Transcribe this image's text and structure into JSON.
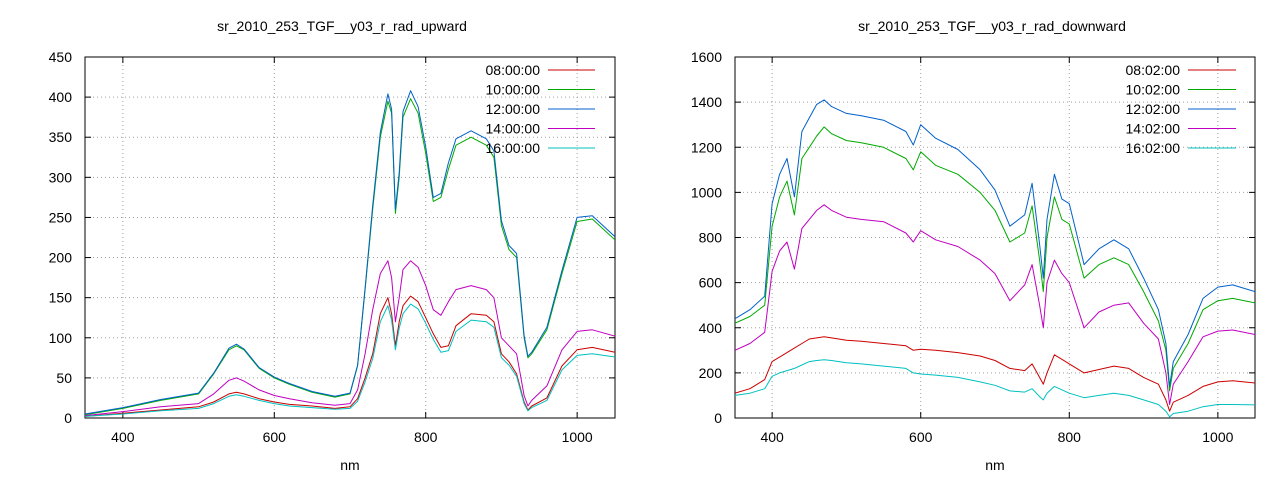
{
  "chart_data": [
    {
      "type": "line",
      "title": "sr_2010_253_TGF__y03_r_rad_upward",
      "xlabel": "nm",
      "ylabel": "",
      "xlim": [
        350,
        1050
      ],
      "ylim": [
        0,
        450
      ],
      "xticks": [
        400,
        600,
        800,
        1000
      ],
      "yticks": [
        0,
        50,
        100,
        150,
        200,
        250,
        300,
        350,
        400,
        450
      ],
      "grid": true,
      "legend_position": "top-right",
      "series": [
        {
          "name": "08:00:00",
          "color": "#cc0000",
          "x": [
            350,
            400,
            450,
            500,
            520,
            540,
            550,
            560,
            580,
            600,
            620,
            650,
            680,
            700,
            710,
            720,
            730,
            740,
            750,
            755,
            760,
            765,
            770,
            780,
            790,
            800,
            810,
            820,
            830,
            840,
            860,
            880,
            890,
            900,
            910,
            920,
            930,
            935,
            940,
            960,
            980,
            1000,
            1020,
            1050
          ],
          "y": [
            2,
            6,
            10,
            14,
            20,
            30,
            32,
            30,
            24,
            20,
            17,
            15,
            12,
            14,
            24,
            50,
            80,
            130,
            150,
            130,
            90,
            120,
            140,
            152,
            145,
            125,
            105,
            88,
            90,
            115,
            130,
            128,
            120,
            80,
            70,
            55,
            20,
            10,
            15,
            25,
            65,
            85,
            88,
            82
          ]
        },
        {
          "name": "10:00:00",
          "color": "#00aa00",
          "x": [
            350,
            400,
            450,
            500,
            520,
            540,
            550,
            560,
            580,
            600,
            620,
            650,
            680,
            700,
            710,
            720,
            730,
            740,
            750,
            755,
            760,
            765,
            770,
            780,
            790,
            800,
            810,
            820,
            830,
            840,
            860,
            880,
            890,
            900,
            910,
            920,
            930,
            935,
            940,
            960,
            980,
            1000,
            1020,
            1050
          ],
          "y": [
            4,
            12,
            22,
            30,
            55,
            85,
            90,
            85,
            62,
            50,
            42,
            32,
            26,
            30,
            65,
            160,
            260,
            350,
            395,
            380,
            255,
            300,
            375,
            398,
            380,
            330,
            270,
            275,
            310,
            340,
            350,
            340,
            325,
            240,
            210,
            200,
            100,
            75,
            80,
            110,
            180,
            245,
            248,
            222
          ]
        },
        {
          "name": "12:00:00",
          "color": "#0060cc",
          "x": [
            350,
            400,
            450,
            500,
            520,
            540,
            550,
            560,
            580,
            600,
            620,
            650,
            680,
            700,
            710,
            720,
            730,
            740,
            750,
            755,
            760,
            765,
            770,
            780,
            790,
            800,
            810,
            820,
            830,
            840,
            860,
            880,
            890,
            900,
            910,
            920,
            930,
            935,
            940,
            960,
            980,
            1000,
            1020,
            1050
          ],
          "y": [
            5,
            13,
            23,
            31,
            56,
            87,
            92,
            86,
            63,
            51,
            43,
            33,
            27,
            31,
            66,
            162,
            265,
            356,
            404,
            385,
            260,
            306,
            382,
            408,
            388,
            338,
            275,
            280,
            318,
            348,
            358,
            348,
            333,
            246,
            215,
            205,
            103,
            77,
            82,
            113,
            184,
            250,
            252,
            226
          ]
        },
        {
          "name": "14:00:00",
          "color": "#c000c0",
          "x": [
            350,
            400,
            450,
            500,
            520,
            540,
            550,
            560,
            580,
            600,
            620,
            650,
            680,
            700,
            710,
            720,
            730,
            740,
            750,
            755,
            760,
            765,
            770,
            780,
            790,
            800,
            810,
            820,
            830,
            840,
            860,
            880,
            890,
            900,
            910,
            920,
            930,
            935,
            940,
            960,
            980,
            1000,
            1020,
            1050
          ],
          "y": [
            3,
            8,
            14,
            18,
            30,
            47,
            50,
            46,
            35,
            28,
            24,
            19,
            16,
            18,
            35,
            80,
            135,
            180,
            196,
            175,
            120,
            150,
            185,
            196,
            188,
            165,
            135,
            128,
            145,
            160,
            165,
            160,
            150,
            100,
            90,
            80,
            28,
            15,
            22,
            40,
            85,
            108,
            110,
            102
          ]
        },
        {
          "name": "16:00:00",
          "color": "#00c0c0",
          "x": [
            350,
            400,
            450,
            500,
            520,
            540,
            550,
            560,
            580,
            600,
            620,
            650,
            680,
            700,
            710,
            720,
            730,
            740,
            750,
            755,
            760,
            765,
            770,
            780,
            790,
            800,
            810,
            820,
            830,
            840,
            860,
            880,
            890,
            900,
            910,
            920,
            930,
            935,
            940,
            960,
            980,
            1000,
            1020,
            1050
          ],
          "y": [
            2,
            5,
            9,
            12,
            18,
            27,
            29,
            27,
            22,
            18,
            15,
            13,
            11,
            12,
            21,
            45,
            74,
            120,
            140,
            122,
            85,
            112,
            130,
            142,
            136,
            118,
            98,
            82,
            84,
            108,
            122,
            120,
            113,
            75,
            66,
            52,
            18,
            9,
            13,
            22,
            60,
            78,
            80,
            76
          ]
        }
      ]
    },
    {
      "type": "line",
      "title": "sr_2010_253_TGF__y03_r_rad_downward",
      "xlabel": "nm",
      "ylabel": "",
      "xlim": [
        350,
        1050
      ],
      "ylim": [
        0,
        1600
      ],
      "xticks": [
        400,
        600,
        800,
        1000
      ],
      "yticks": [
        0,
        200,
        400,
        600,
        800,
        1000,
        1200,
        1400,
        1600
      ],
      "grid": true,
      "legend_position": "top-right",
      "series": [
        {
          "name": "08:02:00",
          "color": "#cc0000",
          "x": [
            350,
            370,
            390,
            400,
            410,
            420,
            430,
            440,
            450,
            460,
            470,
            480,
            500,
            520,
            550,
            580,
            590,
            600,
            620,
            650,
            680,
            700,
            720,
            740,
            750,
            760,
            765,
            770,
            780,
            790,
            800,
            820,
            840,
            860,
            880,
            900,
            920,
            930,
            935,
            940,
            960,
            980,
            1000,
            1020,
            1050
          ],
          "y": [
            110,
            130,
            170,
            250,
            270,
            290,
            310,
            330,
            350,
            355,
            360,
            355,
            345,
            340,
            330,
            320,
            300,
            305,
            300,
            290,
            275,
            255,
            220,
            210,
            240,
            180,
            150,
            200,
            280,
            260,
            240,
            200,
            215,
            230,
            220,
            180,
            150,
            80,
            30,
            70,
            100,
            140,
            160,
            165,
            155
          ]
        },
        {
          "name": "10:02:00",
          "color": "#00aa00",
          "x": [
            350,
            370,
            390,
            400,
            410,
            420,
            430,
            440,
            450,
            460,
            470,
            480,
            500,
            520,
            550,
            580,
            590,
            600,
            620,
            650,
            680,
            700,
            720,
            740,
            750,
            760,
            765,
            770,
            780,
            790,
            800,
            820,
            840,
            860,
            880,
            900,
            920,
            930,
            935,
            940,
            960,
            980,
            1000,
            1020,
            1050
          ],
          "y": [
            420,
            450,
            500,
            850,
            980,
            1050,
            900,
            1150,
            1200,
            1250,
            1290,
            1260,
            1230,
            1220,
            1200,
            1150,
            1100,
            1180,
            1120,
            1080,
            1000,
            920,
            780,
            820,
            940,
            700,
            560,
            800,
            980,
            880,
            860,
            620,
            680,
            710,
            680,
            560,
            430,
            300,
            120,
            220,
            330,
            480,
            520,
            530,
            510
          ]
        },
        {
          "name": "12:02:00",
          "color": "#0060cc",
          "x": [
            350,
            370,
            390,
            400,
            410,
            420,
            430,
            440,
            450,
            460,
            470,
            480,
            500,
            520,
            550,
            580,
            590,
            600,
            620,
            650,
            680,
            700,
            720,
            740,
            750,
            760,
            765,
            770,
            780,
            790,
            800,
            820,
            840,
            860,
            880,
            900,
            920,
            930,
            935,
            940,
            960,
            980,
            1000,
            1020,
            1050
          ],
          "y": [
            440,
            480,
            540,
            950,
            1080,
            1150,
            980,
            1270,
            1330,
            1390,
            1410,
            1380,
            1350,
            1340,
            1320,
            1270,
            1210,
            1300,
            1240,
            1190,
            1100,
            1010,
            850,
            900,
            1040,
            770,
            620,
            880,
            1080,
            970,
            950,
            680,
            750,
            790,
            750,
            620,
            480,
            330,
            140,
            250,
            370,
            530,
            580,
            590,
            560
          ]
        },
        {
          "name": "14:02:00",
          "color": "#c000c0",
          "x": [
            350,
            370,
            390,
            400,
            410,
            420,
            430,
            440,
            450,
            460,
            470,
            480,
            500,
            520,
            550,
            580,
            590,
            600,
            620,
            650,
            680,
            700,
            720,
            740,
            750,
            760,
            765,
            770,
            780,
            790,
            800,
            820,
            840,
            860,
            880,
            900,
            920,
            930,
            935,
            940,
            960,
            980,
            1000,
            1020,
            1050
          ],
          "y": [
            300,
            330,
            380,
            650,
            740,
            780,
            660,
            840,
            880,
            920,
            945,
            920,
            890,
            880,
            870,
            820,
            780,
            830,
            790,
            760,
            700,
            640,
            520,
            590,
            680,
            500,
            400,
            600,
            700,
            640,
            600,
            400,
            470,
            500,
            510,
            420,
            350,
            200,
            60,
            150,
            250,
            360,
            385,
            390,
            370
          ]
        },
        {
          "name": "16:02:00",
          "color": "#00c0c0",
          "x": [
            350,
            370,
            390,
            400,
            410,
            420,
            430,
            440,
            450,
            460,
            470,
            480,
            500,
            520,
            550,
            580,
            590,
            600,
            620,
            650,
            680,
            700,
            720,
            740,
            750,
            760,
            765,
            770,
            780,
            790,
            800,
            820,
            840,
            860,
            880,
            900,
            920,
            930,
            935,
            940,
            960,
            980,
            1000,
            1020,
            1050
          ],
          "y": [
            100,
            110,
            130,
            185,
            200,
            210,
            220,
            235,
            250,
            255,
            258,
            255,
            245,
            240,
            230,
            220,
            200,
            195,
            190,
            180,
            160,
            145,
            120,
            115,
            130,
            95,
            80,
            110,
            140,
            125,
            110,
            90,
            100,
            110,
            100,
            80,
            60,
            30,
            5,
            20,
            30,
            50,
            60,
            60,
            58
          ]
        }
      ]
    }
  ]
}
